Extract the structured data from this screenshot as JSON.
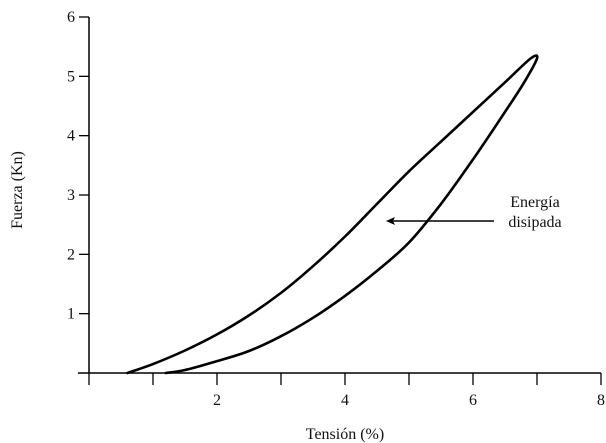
{
  "chart_data": {
    "type": "line",
    "title": "",
    "xlabel": "Tensión (%)",
    "ylabel": "Fuerza (Kn)",
    "xlim": [
      0,
      8
    ],
    "ylim": [
      0,
      6
    ],
    "xticks": [
      {
        "value": 2,
        "label": "2"
      },
      {
        "value": 4,
        "label": "4"
      },
      {
        "value": 6,
        "label": "6"
      },
      {
        "value": 8,
        "label": "8"
      }
    ],
    "xminor": [
      1,
      3,
      5,
      7
    ],
    "yticks": [
      {
        "value": 1,
        "label": "1"
      },
      {
        "value": 2,
        "label": "2"
      },
      {
        "value": 3,
        "label": "3"
      },
      {
        "value": 4,
        "label": "4"
      },
      {
        "value": 5,
        "label": "5"
      },
      {
        "value": 6,
        "label": "6"
      }
    ],
    "grid": false,
    "series": [
      {
        "color": "#000000",
        "points": [
          [
            0.6,
            0.0
          ],
          [
            1.0,
            0.15
          ],
          [
            1.5,
            0.38
          ],
          [
            2.0,
            0.65
          ],
          [
            2.5,
            0.97
          ],
          [
            3.0,
            1.35
          ],
          [
            3.5,
            1.8
          ],
          [
            4.0,
            2.3
          ],
          [
            4.5,
            2.85
          ],
          [
            5.0,
            3.4
          ],
          [
            5.5,
            3.9
          ],
          [
            6.0,
            4.4
          ],
          [
            6.5,
            4.9
          ],
          [
            6.9,
            5.3
          ],
          [
            7.0,
            5.3
          ],
          [
            6.8,
            4.9
          ],
          [
            6.5,
            4.4
          ],
          [
            6.0,
            3.6
          ],
          [
            5.5,
            2.85
          ],
          [
            5.0,
            2.2
          ],
          [
            4.5,
            1.72
          ],
          [
            4.0,
            1.3
          ],
          [
            3.5,
            0.93
          ],
          [
            3.0,
            0.62
          ],
          [
            2.5,
            0.37
          ],
          [
            2.0,
            0.2
          ],
          [
            1.5,
            0.05
          ],
          [
            1.2,
            0.0
          ]
        ]
      }
    ],
    "annotation": {
      "lines": [
        "Energía",
        "disipada"
      ],
      "arrow_to": [
        4.65,
        2.55
      ]
    }
  }
}
